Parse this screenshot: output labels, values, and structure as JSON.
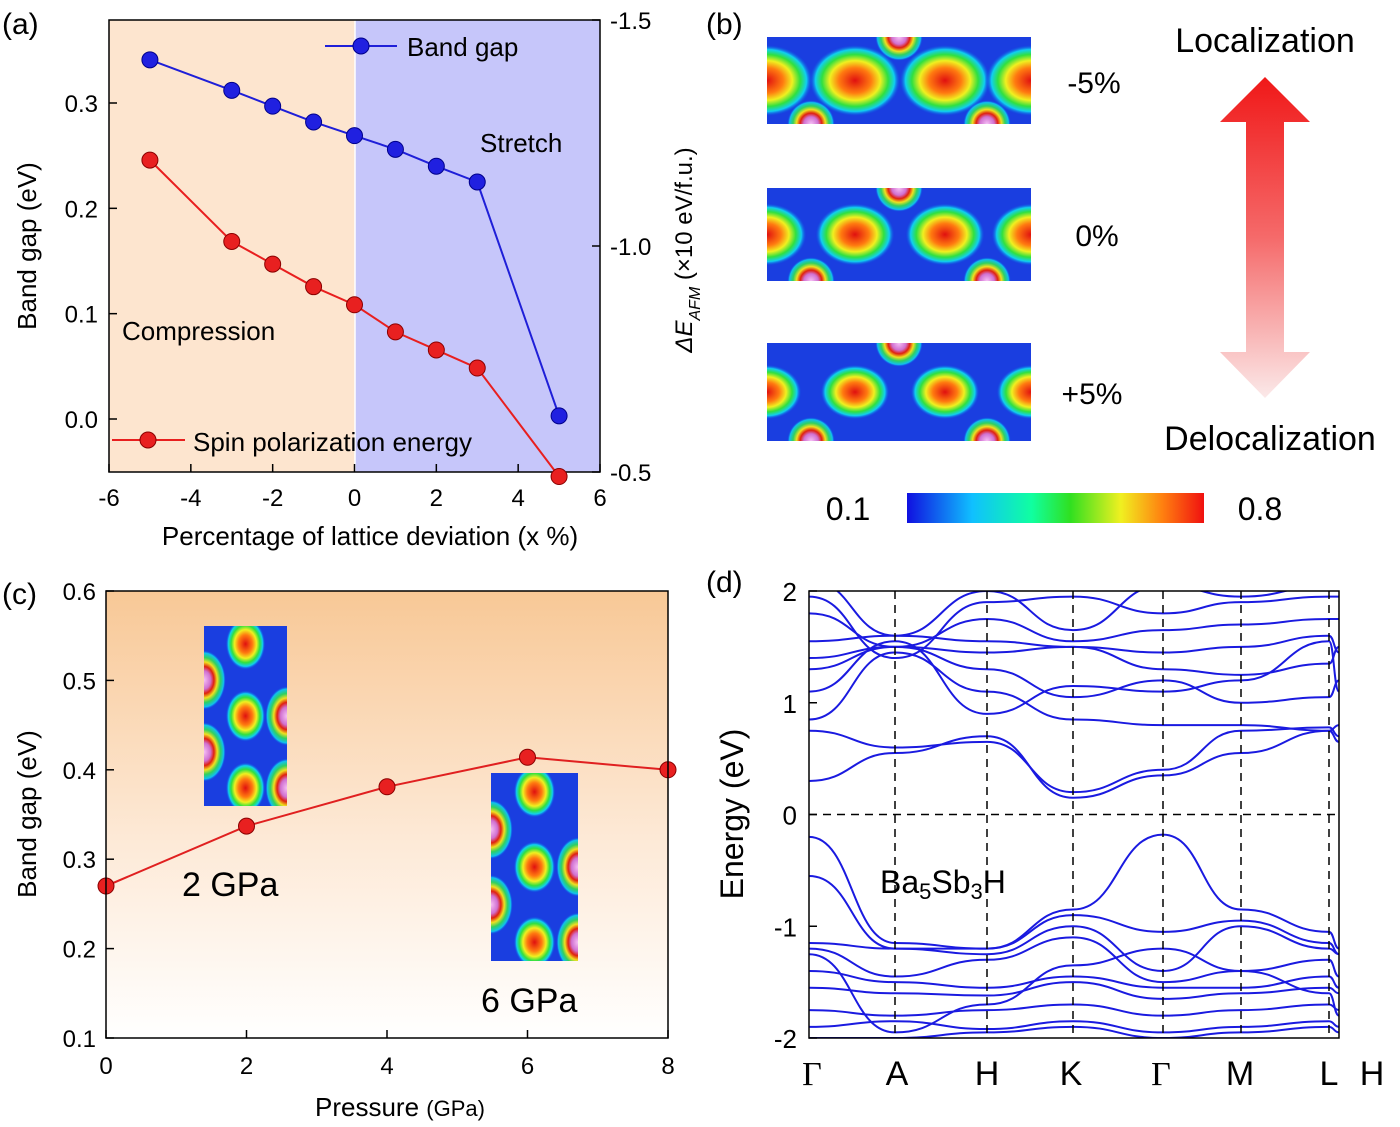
{
  "colors": {
    "band_gap": "#1f1fd8",
    "spin": "#e81f1f",
    "compression_bg": "#fde5cf",
    "stretch_bg": "#c6c6fa",
    "bands": "#1a1ae0",
    "pressure_line": "#e02020"
  },
  "panel_a": {
    "tag": "(a)",
    "xlabel": "Percentage of lattice deviation (x %)",
    "ylabel": "Band gap (eV)",
    "ylabel_right_prefix": "ΔE",
    "ylabel_right_sub": "AFM",
    "ylabel_right_suffix": " (×10 eV/f.u.)",
    "region_left": "Compression",
    "region_right": "Stretch",
    "legend_band_gap": "Band gap",
    "legend_spin": "Spin polarization energy",
    "xticks": [
      "-6",
      "-4",
      "-2",
      "0",
      "2",
      "4",
      "6"
    ],
    "yticks": [
      "0.0",
      "0.1",
      "0.2",
      "0.3"
    ],
    "yticks_right": [
      "-1.5",
      "-1.0",
      "-0.5"
    ]
  },
  "panel_b": {
    "tag": "(b)",
    "labels": [
      "-5%",
      "0%",
      "+5%"
    ],
    "top_label": "Localization",
    "bottom_label": "Delocalization",
    "cbar_min": "0.1",
    "cbar_max": "0.8"
  },
  "panel_c": {
    "tag": "(c)",
    "xlabel_main": "Pressure ",
    "xlabel_unit": "(GPa)",
    "ylabel": "Band gap (eV)",
    "inset1_label": "2 GPa",
    "inset2_label": "6 GPa",
    "xticks": [
      "0",
      "2",
      "4",
      "6",
      "8"
    ],
    "yticks": [
      "0.1",
      "0.2",
      "0.3",
      "0.4",
      "0.5",
      "0.6"
    ]
  },
  "panel_d": {
    "tag": "(d)",
    "ylabel": "Energy (eV)",
    "formula_parts": [
      "Ba",
      "5",
      "Sb",
      "3",
      "H"
    ],
    "kpoints": [
      "Γ",
      "A",
      "H",
      "K",
      "Γ",
      "M",
      "L",
      "H"
    ],
    "yticks": [
      "-2",
      "-1",
      "0",
      "1",
      "2"
    ]
  },
  "chart_data": [
    {
      "type": "line",
      "panel": "a",
      "xlabel": "Percentage of lattice deviation (x %)",
      "ylabel": "Band gap (eV)",
      "ylabel_right": "ΔE_AFM (×10 eV/f.u.)",
      "xlim": [
        -6,
        6
      ],
      "ylim": [
        -0.05,
        0.38
      ],
      "ylim_right": [
        -0.45,
        -1.55
      ],
      "series": [
        {
          "name": "Band gap",
          "axis": "left",
          "x": [
            -5,
            -3,
            -2,
            -1,
            0,
            1,
            2,
            3,
            5
          ],
          "y": [
            0.341,
            0.312,
            0.297,
            0.282,
            0.269,
            0.256,
            0.24,
            0.225,
            0.003
          ]
        },
        {
          "name": "Spin polarization energy",
          "axis": "right",
          "x": [
            -5,
            -3,
            -2,
            -1,
            0,
            1,
            2,
            3,
            5
          ],
          "y": [
            -1.19,
            -1.01,
            -0.96,
            -0.91,
            -0.87,
            -0.81,
            -0.77,
            -0.73,
            -0.49
          ]
        }
      ],
      "regions": [
        {
          "label": "Compression",
          "x": [
            -6,
            0
          ]
        },
        {
          "label": "Stretch",
          "x": [
            0,
            6
          ]
        }
      ],
      "legend": "top-right / bottom-left"
    },
    {
      "type": "line",
      "panel": "c",
      "xlabel": "Pressure (GPa)",
      "ylabel": "Band gap (eV)",
      "xlim": [
        0,
        8
      ],
      "ylim": [
        0.1,
        0.6
      ],
      "series": [
        {
          "x": [
            0,
            2,
            4,
            6,
            8
          ],
          "y": [
            0.27,
            0.337,
            0.381,
            0.414,
            0.4
          ]
        }
      ],
      "annotations": [
        "2 GPa",
        "6 GPa"
      ]
    },
    {
      "type": "line",
      "panel": "d",
      "ylabel": "Energy (eV)",
      "ylim": [
        -2,
        2
      ],
      "xticks": [
        "Γ",
        "A",
        "H",
        "K",
        "Γ",
        "M",
        "L",
        "H"
      ],
      "annotation": "Ba5Sb3H",
      "valence_band_max_at": "Γ",
      "valence_band_max_eV": -0.18,
      "conduction_band_min_eV": 0.15
    }
  ]
}
